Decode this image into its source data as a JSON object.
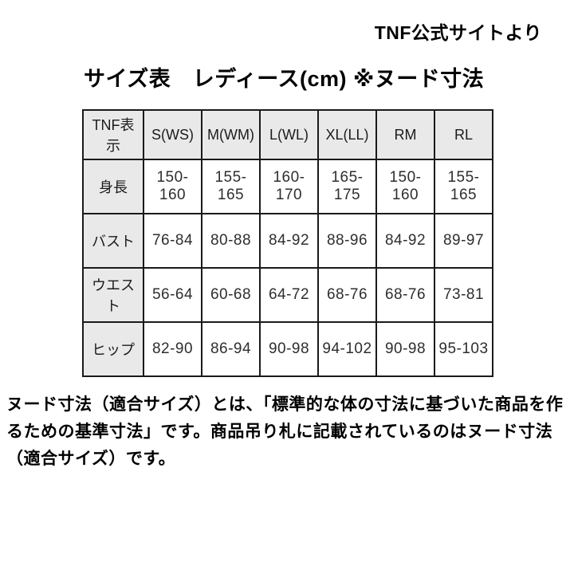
{
  "page": {
    "source_note": "TNF公式サイトより",
    "title": "サイズ表　レディース(cm) ※ヌード寸法"
  },
  "size_table": {
    "columns": [
      "TNF表示",
      "S(WS)",
      "M(WM)",
      "L(WL)",
      "XL(LL)",
      "RM",
      "RL"
    ],
    "rows": [
      {
        "label": "身長",
        "values": [
          "150-160",
          "155-165",
          "160-170",
          "165-175",
          "150-160",
          "155-165"
        ]
      },
      {
        "label": "バスト",
        "values": [
          "76-84",
          "80-88",
          "84-92",
          "88-96",
          "84-92",
          "89-97"
        ]
      },
      {
        "label": "ウエスト",
        "values": [
          "56-64",
          "60-68",
          "64-72",
          "68-76",
          "68-76",
          "73-81"
        ]
      },
      {
        "label": "ヒップ",
        "values": [
          "82-90",
          "86-94",
          "90-98",
          "94-102",
          "90-98",
          "95-103"
        ]
      }
    ]
  },
  "footnote": {
    "lines": [
      "ヌード寸法（適合サイズ）とは、「標準的な体の寸法に基づいた商品を作",
      "るための基準寸法」です。商品吊り札に記載されているのはヌード寸法",
      "（適合サイズ）です。"
    ]
  },
  "colors": {
    "header_bg": "#e9e9e9",
    "border": "#1a1a1a",
    "text": "#000000",
    "cell_text": "#2e2e2e"
  }
}
